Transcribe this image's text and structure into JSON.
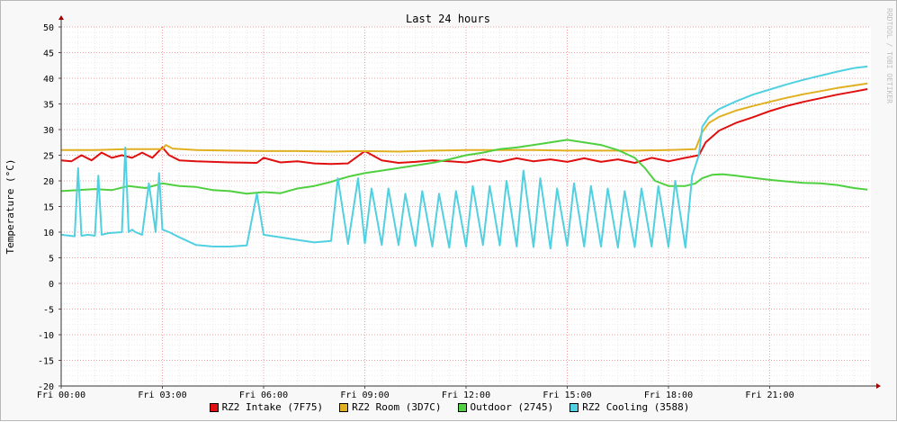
{
  "chart_data": {
    "type": "line",
    "title": "Last 24 hours",
    "ylabel": "Temperature (°C)",
    "xlabel": "",
    "watermark": "RRDTOOL / TOBI OETIKER",
    "ylim": [
      -20,
      50
    ],
    "yticks": [
      -20,
      -15,
      -10,
      -5,
      0,
      5,
      10,
      15,
      20,
      25,
      30,
      35,
      40,
      45,
      50
    ],
    "xlim": [
      0,
      24
    ],
    "xticks": [
      {
        "x": 0,
        "label": "Fri 00:00"
      },
      {
        "x": 3,
        "label": "Fri 03:00"
      },
      {
        "x": 6,
        "label": "Fri 06:00"
      },
      {
        "x": 9,
        "label": "Fri 09:00"
      },
      {
        "x": 12,
        "label": "Fri 12:00"
      },
      {
        "x": 15,
        "label": "Fri 15:00"
      },
      {
        "x": 18,
        "label": "Fri 18:00"
      },
      {
        "x": 21,
        "label": "Fri 21:00"
      }
    ],
    "grid": true,
    "legend_position": "bottom",
    "series": [
      {
        "name": "RZ2 Intake (7F75)",
        "color": "#e01010",
        "x": [
          0,
          0.3,
          0.6,
          0.9,
          1.2,
          1.5,
          1.8,
          2.1,
          2.4,
          2.7,
          3.0,
          3.2,
          3.5,
          4.0,
          5.0,
          5.8,
          6.0,
          6.5,
          7.0,
          7.5,
          8.0,
          8.5,
          9.0,
          9.5,
          10.0,
          10.5,
          11.0,
          11.5,
          12.0,
          12.5,
          13.0,
          13.5,
          14.0,
          14.5,
          15.0,
          15.5,
          16.0,
          16.5,
          17.0,
          17.5,
          18.0,
          18.5,
          18.9,
          19.1,
          19.5,
          20.0,
          20.5,
          21.0,
          21.5,
          22.0,
          22.5,
          23.0,
          23.5,
          23.9
        ],
        "y": [
          24,
          23.8,
          25,
          24,
          25.5,
          24.5,
          25,
          24.5,
          25.5,
          24.5,
          26.5,
          25,
          24,
          23.8,
          23.6,
          23.5,
          24.5,
          23.6,
          23.8,
          23.4,
          23.3,
          23.4,
          25.8,
          24,
          23.5,
          23.7,
          24,
          23.8,
          23.6,
          24.2,
          23.7,
          24.4,
          23.8,
          24.2,
          23.7,
          24.4,
          23.7,
          24.2,
          23.5,
          24.5,
          23.8,
          24.5,
          25,
          27.5,
          29.8,
          31.3,
          32.4,
          33.6,
          34.6,
          35.4,
          36.1,
          36.8,
          37.4,
          37.9
        ]
      },
      {
        "name": "RZ2 Room (3D7C)",
        "color": "#e0b020",
        "x": [
          0,
          1,
          2,
          3,
          3.1,
          3.3,
          4,
          5,
          6,
          7,
          8,
          9,
          10,
          11,
          12,
          13,
          14,
          15,
          16,
          17,
          18,
          18.8,
          19.0,
          19.2,
          19.5,
          20,
          20.5,
          21,
          21.5,
          22,
          22.5,
          23,
          23.5,
          23.9
        ],
        "y": [
          26,
          26,
          26.2,
          26.2,
          27,
          26.3,
          26,
          25.9,
          25.8,
          25.8,
          25.7,
          25.8,
          25.7,
          25.9,
          26,
          26,
          26,
          25.9,
          25.9,
          25.9,
          26,
          26.2,
          29.5,
          31.3,
          32.5,
          33.7,
          34.6,
          35.4,
          36.2,
          36.9,
          37.5,
          38.1,
          38.6,
          39
        ]
      },
      {
        "name": "Outdoor (2745)",
        "color": "#50d040",
        "x": [
          0,
          0.5,
          1,
          1.5,
          2,
          2.5,
          3,
          3.5,
          4,
          4.5,
          5,
          5.5,
          6,
          6.5,
          7,
          7.5,
          8,
          8.5,
          9,
          9.5,
          10,
          10.5,
          11,
          11.5,
          12,
          12.5,
          13,
          13.5,
          14,
          14.5,
          15,
          15.5,
          16,
          16.5,
          17,
          17.3,
          17.6,
          18,
          18.5,
          18.8,
          19.0,
          19.3,
          19.6,
          20,
          20.5,
          21,
          21.5,
          22,
          22.5,
          23,
          23.5,
          23.9
        ],
        "y": [
          18,
          18.2,
          18.4,
          18.2,
          19,
          18.6,
          19.5,
          19,
          18.8,
          18.2,
          18,
          17.5,
          17.8,
          17.6,
          18.5,
          19,
          19.8,
          20.8,
          21.5,
          22,
          22.5,
          23,
          23.5,
          24.2,
          25,
          25.5,
          26.2,
          26.5,
          27,
          27.5,
          28,
          27.5,
          27,
          26,
          24.5,
          22.5,
          20,
          19,
          19,
          19.5,
          20.5,
          21.2,
          21.3,
          21,
          20.6,
          20.2,
          19.9,
          19.6,
          19.5,
          19.2,
          18.6,
          18.3
        ]
      },
      {
        "name": "RZ2 Cooling (3588)",
        "color": "#50d0e0",
        "x": [
          0,
          0.4,
          0.5,
          0.6,
          0.8,
          1.0,
          1.1,
          1.2,
          1.4,
          1.8,
          1.9,
          2.0,
          2.1,
          2.2,
          2.4,
          2.6,
          2.8,
          2.9,
          3.0,
          3.2,
          3.5,
          4.0,
          4.5,
          5.0,
          5.5,
          5.8,
          6.0,
          6.5,
          7.0,
          7.5,
          8.0,
          8.2,
          8.5,
          8.8,
          9.0,
          9.2,
          9.5,
          9.7,
          10.0,
          10.2,
          10.5,
          10.7,
          11.0,
          11.2,
          11.5,
          11.7,
          12.0,
          12.2,
          12.5,
          12.7,
          13.0,
          13.2,
          13.5,
          13.7,
          14.0,
          14.2,
          14.5,
          14.7,
          15.0,
          15.2,
          15.5,
          15.7,
          16.0,
          16.2,
          16.5,
          16.7,
          17.0,
          17.2,
          17.5,
          17.7,
          18.0,
          18.2,
          18.5,
          18.7,
          18.9,
          19.0,
          19.2,
          19.5,
          20.0,
          20.5,
          21.0,
          21.5,
          22.0,
          22.5,
          23.0,
          23.5,
          23.9
        ],
        "y": [
          9.5,
          9.2,
          22.5,
          9.3,
          9.5,
          9.3,
          21,
          9.5,
          9.8,
          10,
          26.5,
          10,
          10.5,
          10,
          9.5,
          19.5,
          10,
          21.5,
          10.5,
          10,
          9,
          7.5,
          7.2,
          7.2,
          7.4,
          17.5,
          9.5,
          9,
          8.5,
          8,
          8.3,
          20.5,
          7.7,
          20.5,
          7.8,
          18.5,
          7.5,
          18.5,
          7.5,
          17.5,
          7.3,
          18,
          7.2,
          17.5,
          7,
          18,
          7.2,
          19,
          7.5,
          19,
          7.4,
          20,
          7.2,
          22,
          7.1,
          20.5,
          6.8,
          18.5,
          7.3,
          19.5,
          7.2,
          19,
          7.2,
          18.5,
          7,
          18,
          7.1,
          18.5,
          7.2,
          19,
          7.1,
          20,
          7,
          21,
          25,
          30.5,
          32.5,
          34,
          35.5,
          36.8,
          37.8,
          38.8,
          39.7,
          40.5,
          41.3,
          42,
          42.3
        ]
      }
    ]
  }
}
